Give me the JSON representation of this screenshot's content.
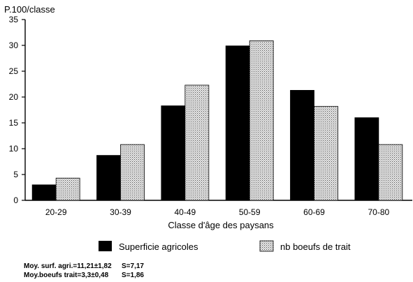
{
  "chart_data": {
    "type": "bar",
    "ylabel": "P.100/classe",
    "xlabel": "Classe d'âge des paysans",
    "title": "",
    "ylim": [
      0,
      35
    ],
    "yticks": [
      0,
      5,
      10,
      15,
      20,
      25,
      30,
      35
    ],
    "grid": false,
    "legend_placement": "bottom",
    "categories": [
      "20-29",
      "30-39",
      "40-49",
      "50-59",
      "60-69",
      "70-80"
    ],
    "series": [
      {
        "name": "Superficie agricoles",
        "values": [
          3.0,
          8.7,
          18.3,
          29.9,
          21.3,
          16.0
        ],
        "color": "#000000",
        "pattern": "solid"
      },
      {
        "name": "nb boeufs de trait",
        "values": [
          4.3,
          10.8,
          22.3,
          30.9,
          18.2,
          10.8
        ],
        "color": "#c8c8c8",
        "pattern": "dotted"
      }
    ],
    "notes": [
      {
        "left": "Moy. surf. agri.=11,21±1,82",
        "right": "S=7,17"
      },
      {
        "left": "Moy.boeufs trait=3,3±0,48",
        "right": "S=1,86"
      }
    ]
  }
}
